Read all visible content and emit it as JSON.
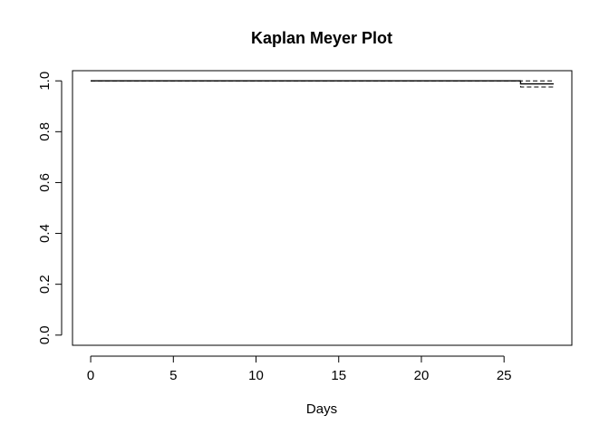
{
  "chart_data": {
    "type": "line",
    "title": "Kaplan Meyer Plot",
    "xlabel": "Days",
    "ylabel": "",
    "xlim": [
      -1.1,
      29.1
    ],
    "ylim": [
      -0.04,
      1.04
    ],
    "x_ticks": [
      0,
      5,
      10,
      15,
      20,
      25
    ],
    "x_tick_labels": [
      "0",
      "5",
      "10",
      "15",
      "20",
      "25"
    ],
    "y_ticks": [
      0.0,
      0.2,
      0.4,
      0.6,
      0.8,
      1.0
    ],
    "y_tick_labels": [
      "0.0",
      "0.2",
      "0.4",
      "0.6",
      "0.8",
      "1.0"
    ],
    "grid": false,
    "legend": "none",
    "series": [
      {
        "style": "solid",
        "step": true,
        "x": [
          0,
          26,
          28
        ],
        "y": [
          1.0,
          0.988,
          0.988
        ]
      },
      {
        "style": "dashed",
        "step": true,
        "x": [
          0,
          26,
          28
        ],
        "y": [
          1.0,
          1.0,
          1.0
        ]
      },
      {
        "style": "dashed",
        "step": true,
        "x": [
          0,
          26,
          28
        ],
        "y": [
          1.0,
          0.976,
          0.976
        ]
      }
    ]
  }
}
